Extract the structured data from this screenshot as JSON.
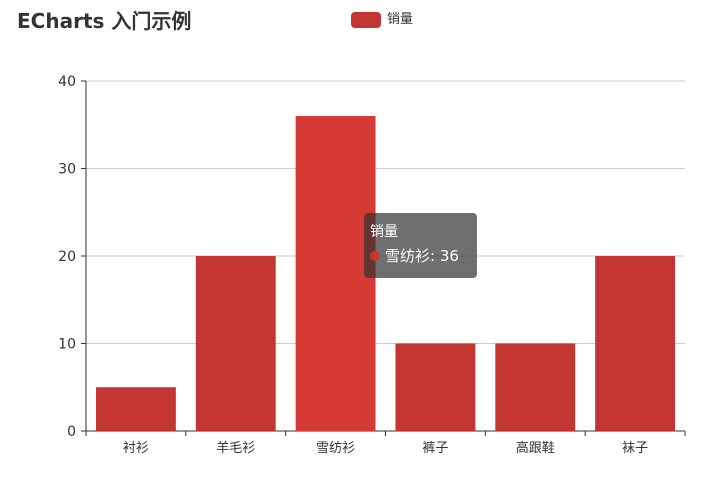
{
  "colors": {
    "bar": "#c23531",
    "bar_emphasis": "#d63a35",
    "axis": "#333333",
    "grid": "#cccccc",
    "text": "#333333"
  },
  "legend": {
    "label": "销量"
  },
  "tooltip": {
    "title": "销量",
    "item": "雪纺衫: 36",
    "visible": true
  },
  "chart_data": {
    "type": "bar",
    "title": "ECharts 入门示例",
    "categories": [
      "衬衫",
      "羊毛衫",
      "雪纺衫",
      "裤子",
      "高跟鞋",
      "袜子"
    ],
    "series": [
      {
        "name": "销量",
        "values": [
          5,
          20,
          36,
          10,
          10,
          20
        ]
      }
    ],
    "yticks": [
      0,
      10,
      20,
      30,
      40
    ],
    "ylim": [
      0,
      40
    ],
    "grid": true,
    "legend_position": "top-center",
    "highlighted_index": 2
  }
}
